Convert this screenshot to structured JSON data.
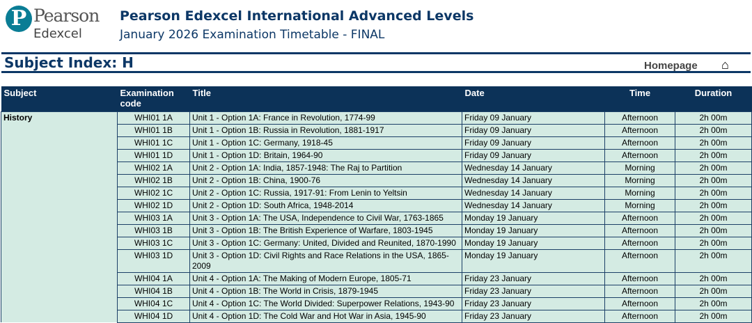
{
  "logo": {
    "mark": "P",
    "line1": "Pearson",
    "line2": "Edexcel"
  },
  "header": {
    "title": "Pearson Edexcel International Advanced Levels",
    "subtitle": "January 2026 Examination Timetable - FINAL"
  },
  "index": {
    "title": "Subject Index: H",
    "homepage": "Homepage",
    "home_icon": "home-icon"
  },
  "table": {
    "columns": [
      "Subject",
      "Examination code",
      "Title",
      "Date",
      "Time",
      "Duration"
    ],
    "subject": "History",
    "rows": [
      {
        "code": "WHI01 1A",
        "title": "Unit 1 - Option 1A: France in Revolution, 1774-99",
        "date": "Friday 09 January",
        "time": "Afternoon",
        "duration": "2h 00m"
      },
      {
        "code": "WHI01 1B",
        "title": "Unit 1 - Option 1B: Russia in Revolution, 1881-1917",
        "date": "Friday 09 January",
        "time": "Afternoon",
        "duration": "2h 00m"
      },
      {
        "code": "WHI01 1C",
        "title": "Unit 1 - Option 1C: Germany, 1918-45",
        "date": "Friday 09 January",
        "time": "Afternoon",
        "duration": "2h 00m"
      },
      {
        "code": "WHI01 1D",
        "title": "Unit 1 - Option 1D: Britain, 1964-90",
        "date": "Friday 09 January",
        "time": "Afternoon",
        "duration": "2h 00m"
      },
      {
        "code": "WHI02 1A",
        "title": "Unit 2 - Option 1A: India, 1857-1948: The Raj to Partition",
        "date": "Wednesday 14 January",
        "time": "Morning",
        "duration": "2h 00m"
      },
      {
        "code": "WHI02 1B",
        "title": "Unit 2 - Option 1B: China, 1900-76",
        "date": "Wednesday 14 January",
        "time": "Morning",
        "duration": "2h 00m"
      },
      {
        "code": "WHI02 1C",
        "title": "Unit 2 - Option 1C: Russia, 1917-91: From Lenin to Yeltsin",
        "date": "Wednesday 14 January",
        "time": "Morning",
        "duration": "2h 00m"
      },
      {
        "code": "WHI02 1D",
        "title": "Unit 2 - Option 1D: South Africa, 1948-2014",
        "date": "Wednesday 14 January",
        "time": "Morning",
        "duration": "2h 00m"
      },
      {
        "code": "WHI03 1A",
        "title": "Unit 3 - Option 1A: The USA, Independence to Civil War, 1763-1865",
        "date": "Monday 19 January",
        "time": "Afternoon",
        "duration": "2h 00m"
      },
      {
        "code": "WHI03 1B",
        "title": "Unit 3 - Option 1B: The British Experience of Warfare, 1803-1945",
        "date": "Monday 19 January",
        "time": "Afternoon",
        "duration": "2h 00m"
      },
      {
        "code": "WHI03 1C",
        "title": "Unit 3 - Option 1C: Germany: United, Divided and Reunited, 1870-1990",
        "date": "Monday 19 January",
        "time": "Afternoon",
        "duration": "2h 00m"
      },
      {
        "code": "WHI03 1D",
        "title": "Unit 3 - Option 1D: Civil Rights and Race Relations in the USA, 1865-2009",
        "date": "Monday 19 January",
        "time": "Afternoon",
        "duration": "2h 00m"
      },
      {
        "code": "WHI04 1A",
        "title": "Unit 4 - Option 1A: The Making of Modern Europe, 1805-71",
        "date": "Friday 23 January",
        "time": "Afternoon",
        "duration": "2h 00m"
      },
      {
        "code": "WHI04 1B",
        "title": "Unit 4 - Option 1B: The World in Crisis, 1879-1945",
        "date": "Friday 23 January",
        "time": "Afternoon",
        "duration": "2h 00m"
      },
      {
        "code": "WHI04 1C",
        "title": "Unit 4 - Option 1C: The World Divided: Superpower Relations, 1943-90",
        "date": "Friday 23 January",
        "time": "Afternoon",
        "duration": "2h 00m"
      },
      {
        "code": "WHI04 1D",
        "title": "Unit 4 - Option 1D: The Cold War and Hot War in Asia, 1945-90",
        "date": "Friday 23 January",
        "time": "Afternoon",
        "duration": "2h 00m"
      }
    ]
  }
}
